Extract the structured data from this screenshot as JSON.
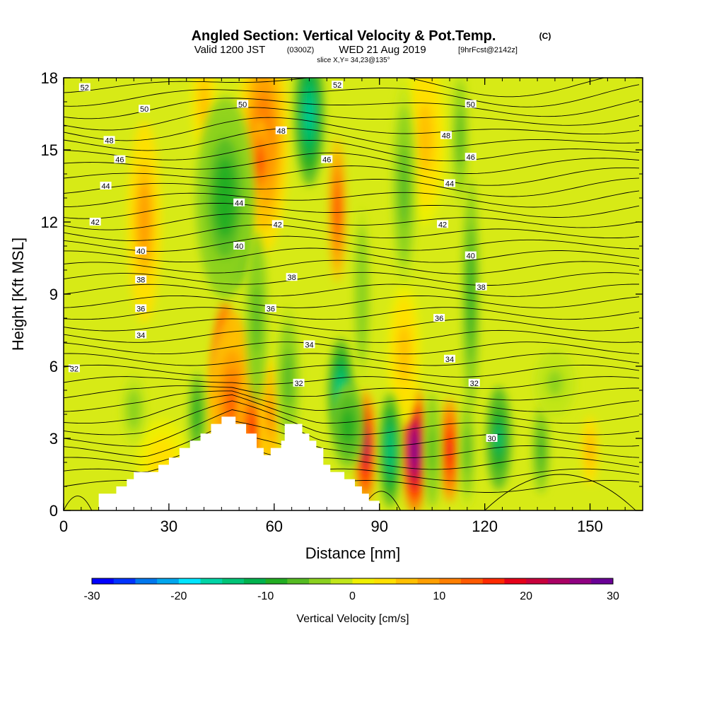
{
  "title": {
    "main": "Angled Section: Vertical Velocity & Pot.Temp.",
    "main_unit": "(C)",
    "valid_prefix": "Valid 1200 JST",
    "valid_zulu": "(0300Z)",
    "valid_date": "WED 21 Aug 2019",
    "forecast": "[9hrFcst@2142z]",
    "slice": "slice X,Y= 34,23@135°"
  },
  "chart_data": {
    "type": "heatmap",
    "xlabel": "Distance [nm]",
    "ylabel": "Height [Kft MSL]",
    "xlim": [
      0,
      165
    ],
    "ylim": [
      0,
      18
    ],
    "x_ticks": [
      0,
      30,
      60,
      90,
      120,
      150
    ],
    "y_ticks": [
      0,
      3,
      6,
      9,
      12,
      15,
      18
    ],
    "colorbar": {
      "title": "Vertical Velocity [cm/s]",
      "range": [
        -30,
        30
      ],
      "tick_values": [
        -30,
        -20,
        -10,
        0,
        10,
        20,
        30
      ],
      "tick_labels": [
        "-30",
        "-20",
        "-10",
        "0",
        "10",
        "20",
        "30"
      ],
      "colors": [
        "#0000ff",
        "#0033ff",
        "#0077ee",
        "#00a6ee",
        "#00e5ff",
        "#00d4a6",
        "#00c477",
        "#00b24e",
        "#22ad22",
        "#55bb22",
        "#8bd11f",
        "#c1e61a",
        "#f0f000",
        "#ffe000",
        "#ffc000",
        "#ff9f00",
        "#ff7f00",
        "#ff5a00",
        "#ff2a00",
        "#e60019",
        "#c8003c",
        "#aa0064",
        "#900082",
        "#6a0096"
      ]
    },
    "terrain_profile": [
      [
        0,
        0
      ],
      [
        10,
        0
      ],
      [
        10,
        0.7
      ],
      [
        15,
        0.7
      ],
      [
        15,
        1.0
      ],
      [
        18,
        1.0
      ],
      [
        18,
        1.3
      ],
      [
        20,
        1.3
      ],
      [
        20,
        1.6
      ],
      [
        24,
        1.6
      ],
      [
        24,
        1.6
      ],
      [
        27,
        1.6
      ],
      [
        27,
        1.9
      ],
      [
        30,
        1.9
      ],
      [
        30,
        2.2
      ],
      [
        33,
        2.2
      ],
      [
        33,
        2.6
      ],
      [
        36,
        2.6
      ],
      [
        36,
        2.9
      ],
      [
        39,
        2.9
      ],
      [
        39,
        3.2
      ],
      [
        42,
        3.2
      ],
      [
        42,
        3.6
      ],
      [
        45,
        3.6
      ],
      [
        45,
        3.9
      ],
      [
        49,
        3.9
      ],
      [
        49,
        3.6
      ],
      [
        52,
        3.6
      ],
      [
        52,
        3.2
      ],
      [
        55,
        3.2
      ],
      [
        55,
        2.6
      ],
      [
        57,
        2.6
      ],
      [
        57,
        2.3
      ],
      [
        59,
        2.3
      ],
      [
        59,
        2.6
      ],
      [
        62,
        2.6
      ],
      [
        62,
        2.9
      ],
      [
        63,
        2.9
      ],
      [
        63,
        3.6
      ],
      [
        68,
        3.6
      ],
      [
        68,
        3.2
      ],
      [
        70,
        3.2
      ],
      [
        70,
        2.9
      ],
      [
        72,
        2.9
      ],
      [
        72,
        2.6
      ],
      [
        74,
        2.6
      ],
      [
        74,
        1.9
      ],
      [
        76,
        1.9
      ],
      [
        76,
        1.6
      ],
      [
        80,
        1.6
      ],
      [
        80,
        1.3
      ],
      [
        83,
        1.3
      ],
      [
        83,
        1.0
      ],
      [
        85,
        1.0
      ],
      [
        85,
        0.7
      ],
      [
        87,
        0.7
      ],
      [
        87,
        0.4
      ],
      [
        90,
        0.4
      ],
      [
        90,
        0
      ],
      [
        165,
        0
      ]
    ],
    "cells": [
      {
        "x": 46,
        "y": 5.8,
        "rx": 3,
        "ry": 2.4,
        "w": 30
      },
      {
        "x": 48,
        "y": 4.4,
        "rx": 6,
        "ry": 3.2,
        "w": 13
      },
      {
        "x": 54,
        "y": 3.5,
        "rx": 4,
        "ry": 1.8,
        "w": 17
      },
      {
        "x": 59,
        "y": 4.0,
        "rx": 3,
        "ry": 2.0,
        "w": 10
      },
      {
        "x": 86,
        "y": 2.6,
        "rx": 2.5,
        "ry": 2.0,
        "w": 24
      },
      {
        "x": 100,
        "y": 2.5,
        "rx": 3,
        "ry": 2.2,
        "w": 30
      },
      {
        "x": 110,
        "y": 2.5,
        "rx": 2.5,
        "ry": 1.8,
        "w": 19
      },
      {
        "x": 150,
        "y": 2.5,
        "rx": 2,
        "ry": 1.2,
        "w": 8
      },
      {
        "x": 57,
        "y": 15.5,
        "rx": 6,
        "ry": 4.0,
        "w": 12
      },
      {
        "x": 56,
        "y": 14.5,
        "rx": 2.5,
        "ry": 1.5,
        "w": 15
      },
      {
        "x": 78,
        "y": 12.5,
        "rx": 2,
        "ry": 2.5,
        "w": 15
      },
      {
        "x": 23,
        "y": 12.0,
        "rx": 4,
        "ry": 3.5,
        "w": 9
      },
      {
        "x": 40,
        "y": 17.0,
        "rx": 3,
        "ry": 2.0,
        "w": 6
      },
      {
        "x": 103,
        "y": 15.5,
        "rx": 5,
        "ry": 3.0,
        "w": 6
      },
      {
        "x": 97,
        "y": 6.5,
        "rx": 4,
        "ry": 2.5,
        "w": 6
      },
      {
        "x": 28,
        "y": 2.0,
        "rx": 6,
        "ry": 1.5,
        "w": 4
      },
      {
        "x": 70,
        "y": 16.5,
        "rx": 3.5,
        "ry": 2.5,
        "w": -16
      },
      {
        "x": 49,
        "y": 12.0,
        "rx": 3,
        "ry": 2.2,
        "w": -14
      },
      {
        "x": 46,
        "y": 13.0,
        "rx": 7,
        "ry": 3.5,
        "w": -9
      },
      {
        "x": 79,
        "y": 5.0,
        "rx": 3,
        "ry": 1.8,
        "w": -17
      },
      {
        "x": 81,
        "y": 3.5,
        "rx": 4,
        "ry": 1.5,
        "w": -10
      },
      {
        "x": 93,
        "y": 2.5,
        "rx": 2.5,
        "ry": 2.0,
        "w": -15
      },
      {
        "x": 105,
        "y": 2.5,
        "rx": 2,
        "ry": 2.0,
        "w": -7
      },
      {
        "x": 115,
        "y": 2.5,
        "rx": 2,
        "ry": 2.0,
        "w": -6
      },
      {
        "x": 124,
        "y": 3.0,
        "rx": 3,
        "ry": 1.8,
        "w": -13
      },
      {
        "x": 136,
        "y": 2.5,
        "rx": 2,
        "ry": 1.5,
        "w": -8
      },
      {
        "x": 38,
        "y": 4.0,
        "rx": 2,
        "ry": 1.5,
        "w": -10
      },
      {
        "x": 64,
        "y": 5.5,
        "rx": 3,
        "ry": 2.5,
        "w": -6
      },
      {
        "x": 116,
        "y": 9.0,
        "rx": 2,
        "ry": 4.0,
        "w": -9
      },
      {
        "x": 97,
        "y": 13.5,
        "rx": 3,
        "ry": 3.5,
        "w": -6
      },
      {
        "x": 113,
        "y": 15.5,
        "rx": 2,
        "ry": 2.5,
        "w": -6
      },
      {
        "x": 55,
        "y": 8.0,
        "rx": 2.5,
        "ry": 3.0,
        "w": -7
      },
      {
        "x": 85,
        "y": 9.0,
        "rx": 2,
        "ry": 3.0,
        "w": -5
      },
      {
        "x": 20,
        "y": 4.2,
        "rx": 3,
        "ry": 1.2,
        "w": -4
      },
      {
        "x": 140,
        "y": 5.3,
        "rx": 5,
        "ry": 1.2,
        "w": -3
      }
    ],
    "contour_levels": [
      30,
      32,
      34,
      36,
      38,
      40,
      42,
      44,
      46,
      48,
      50,
      52
    ],
    "contour_labels": [
      {
        "text": "52",
        "x": 6,
        "y": 17.6
      },
      {
        "text": "52",
        "x": 78,
        "y": 17.7
      },
      {
        "text": "50",
        "x": 23,
        "y": 16.7
      },
      {
        "text": "50",
        "x": 51,
        "y": 16.9
      },
      {
        "text": "50",
        "x": 116,
        "y": 16.9
      },
      {
        "text": "48",
        "x": 13,
        "y": 15.4
      },
      {
        "text": "48",
        "x": 62,
        "y": 15.8
      },
      {
        "text": "48",
        "x": 109,
        "y": 15.6
      },
      {
        "text": "46",
        "x": 16,
        "y": 14.6
      },
      {
        "text": "46",
        "x": 75,
        "y": 14.6
      },
      {
        "text": "46",
        "x": 116,
        "y": 14.7
      },
      {
        "text": "44",
        "x": 12,
        "y": 13.5
      },
      {
        "text": "44",
        "x": 50,
        "y": 12.8
      },
      {
        "text": "44",
        "x": 110,
        "y": 13.6
      },
      {
        "text": "42",
        "x": 9,
        "y": 12.0
      },
      {
        "text": "42",
        "x": 61,
        "y": 11.9
      },
      {
        "text": "42",
        "x": 108,
        "y": 11.9
      },
      {
        "text": "40",
        "x": 22,
        "y": 10.8
      },
      {
        "text": "40",
        "x": 50,
        "y": 11.0
      },
      {
        "text": "40",
        "x": 116,
        "y": 10.6
      },
      {
        "text": "38",
        "x": 22,
        "y": 9.6
      },
      {
        "text": "38",
        "x": 65,
        "y": 9.7
      },
      {
        "text": "38",
        "x": 119,
        "y": 9.3
      },
      {
        "text": "36",
        "x": 22,
        "y": 8.4
      },
      {
        "text": "36",
        "x": 59,
        "y": 8.4
      },
      {
        "text": "36",
        "x": 107,
        "y": 8.0
      },
      {
        "text": "34",
        "x": 22,
        "y": 7.3
      },
      {
        "text": "34",
        "x": 70,
        "y": 6.9
      },
      {
        "text": "34",
        "x": 110,
        "y": 6.3
      },
      {
        "text": "32",
        "x": 3,
        "y": 5.9
      },
      {
        "text": "32",
        "x": 67,
        "y": 5.3
      },
      {
        "text": "32",
        "x": 117,
        "y": 5.3
      },
      {
        "text": "30",
        "x": 122,
        "y": 3.0
      }
    ]
  }
}
